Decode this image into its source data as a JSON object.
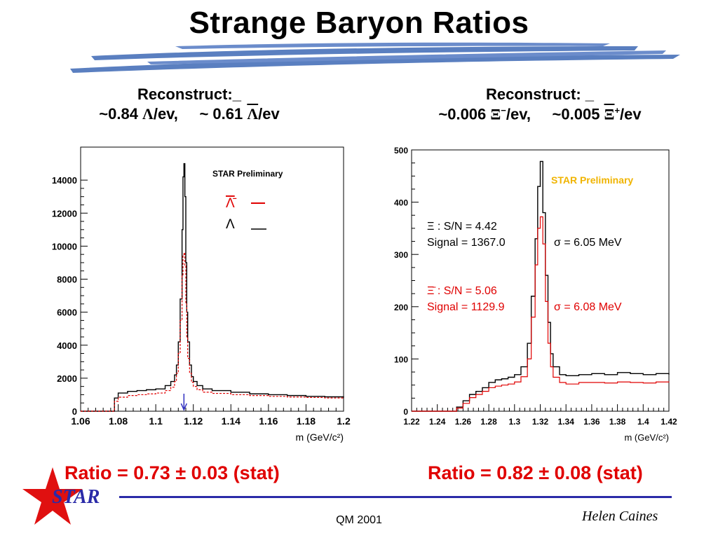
{
  "title": "Strange Baryon  Ratios",
  "colors": {
    "accent_red": "#e00000",
    "star_blue": "#2a2aa8",
    "brush_blue": "#5a7fc0"
  },
  "left_header": {
    "line1": "Reconstruct:_",
    "approx1": "~",
    "val1": "0.84 ",
    "sym1": "Λ",
    "unit1": "/ev,",
    "approx2": "~ ",
    "val2": "0.61 ",
    "sym2": "Λ",
    "unit2": "/ev"
  },
  "right_header": {
    "line1": "Reconstruct:    _",
    "approx1": "~",
    "val1": "0.006 ",
    "sym1": "Ξ",
    "sup1": "−",
    "unit1": "/ev,",
    "approx2": "~",
    "val2": "0.005 ",
    "sym2": "Ξ",
    "sup2": "+",
    "unit2": "/ev"
  },
  "chart_data": [
    {
      "type": "line",
      "xlabel": "m  (GeV/c²)",
      "xlim": [
        1.06,
        1.2
      ],
      "ylim": [
        0,
        16000
      ],
      "x_ticks": [
        "1.06",
        "1.08",
        "1.1",
        "1.12",
        "1.14",
        "1.16",
        "1.18",
        "1.2"
      ],
      "y_ticks": [
        "0",
        "2000",
        "4000",
        "6000",
        "8000",
        "10000",
        "12000",
        "14000"
      ],
      "annotation": "STAR Preliminary",
      "legend": [
        {
          "symbol": "Λ̄",
          "style": "red dashed",
          "color": "#e00000"
        },
        {
          "symbol": "Λ",
          "style": "black solid",
          "color": "#000000"
        }
      ],
      "arrow_x": 1.115,
      "series": [
        {
          "style": "black solid",
          "color": "#000000",
          "x": [
            1.06,
            1.069,
            1.077,
            1.078,
            1.08,
            1.085,
            1.09,
            1.095,
            1.1,
            1.105,
            1.108,
            1.11,
            1.111,
            1.112,
            1.113,
            1.114,
            1.1145,
            1.115,
            1.1155,
            1.116,
            1.1165,
            1.117,
            1.118,
            1.119,
            1.12,
            1.122,
            1.125,
            1.13,
            1.14,
            1.15,
            1.16,
            1.17,
            1.18,
            1.19,
            1.2
          ],
          "values": [
            0,
            0,
            0,
            800,
            1100,
            1200,
            1250,
            1300,
            1350,
            1550,
            1800,
            2200,
            2800,
            4200,
            6800,
            11000,
            14200,
            15000,
            13000,
            9000,
            6000,
            4200,
            2800,
            2100,
            1800,
            1550,
            1350,
            1250,
            1150,
            1050,
            1000,
            950,
            900,
            870,
            830
          ]
        },
        {
          "style": "red dashed",
          "color": "#e00000",
          "x": [
            1.06,
            1.069,
            1.077,
            1.078,
            1.08,
            1.085,
            1.09,
            1.095,
            1.1,
            1.105,
            1.108,
            1.11,
            1.111,
            1.112,
            1.113,
            1.114,
            1.1145,
            1.115,
            1.1155,
            1.116,
            1.1165,
            1.117,
            1.118,
            1.119,
            1.12,
            1.122,
            1.125,
            1.13,
            1.14,
            1.15,
            1.16,
            1.17,
            1.18,
            1.19,
            1.2
          ],
          "values": [
            0,
            0,
            0,
            600,
            850,
            950,
            1000,
            1050,
            1100,
            1250,
            1450,
            1800,
            2300,
            3500,
            5500,
            8200,
            9400,
            9600,
            8800,
            6500,
            4500,
            3200,
            2300,
            1750,
            1500,
            1300,
            1150,
            1080,
            1000,
            950,
            900,
            860,
            830,
            800,
            780
          ]
        }
      ]
    },
    {
      "type": "line",
      "xlabel": "m (GeV/c²)",
      "xlim": [
        1.22,
        1.42
      ],
      "ylim": [
        0,
        500
      ],
      "x_ticks": [
        "1.22",
        "1.24",
        "1.26",
        "1.28",
        "1.3",
        "1.32",
        "1.34",
        "1.36",
        "1.38",
        "1.4",
        "1.42"
      ],
      "y_ticks": [
        "0",
        "100",
        "200",
        "300",
        "400",
        "500"
      ],
      "annotation": "STAR Preliminary",
      "stats": [
        {
          "sym": "Ξ",
          "sn": " : S/N = 4.42",
          "signal": "Signal = 1367.0",
          "sigma": "σ = 6.05 MeV",
          "color": "#000000"
        },
        {
          "sym": "Ξ̄",
          "sn": " : S/N = 5.06",
          "signal": "Signal = 1129.9",
          "sigma": "σ = 6.08 MeV",
          "color": "#e00000"
        }
      ],
      "series": [
        {
          "style": "black solid",
          "color": "#000000",
          "x": [
            1.22,
            1.25,
            1.255,
            1.26,
            1.265,
            1.27,
            1.275,
            1.28,
            1.285,
            1.29,
            1.295,
            1.3,
            1.305,
            1.31,
            1.313,
            1.316,
            1.318,
            1.32,
            1.322,
            1.324,
            1.326,
            1.328,
            1.33,
            1.335,
            1.34,
            1.35,
            1.36,
            1.37,
            1.38,
            1.39,
            1.4,
            1.41,
            1.42
          ],
          "values": [
            0,
            0,
            8,
            20,
            32,
            38,
            45,
            55,
            60,
            62,
            65,
            70,
            85,
            130,
            220,
            330,
            430,
            478,
            380,
            260,
            170,
            110,
            85,
            70,
            68,
            70,
            72,
            70,
            74,
            72,
            70,
            72,
            70
          ]
        },
        {
          "style": "red solid",
          "color": "#e00000",
          "x": [
            1.22,
            1.25,
            1.255,
            1.26,
            1.265,
            1.27,
            1.275,
            1.28,
            1.285,
            1.29,
            1.295,
            1.3,
            1.305,
            1.31,
            1.313,
            1.316,
            1.318,
            1.32,
            1.322,
            1.324,
            1.326,
            1.328,
            1.33,
            1.335,
            1.34,
            1.35,
            1.36,
            1.37,
            1.38,
            1.39,
            1.4,
            1.41,
            1.42
          ],
          "values": [
            0,
            0,
            6,
            15,
            26,
            32,
            38,
            45,
            48,
            50,
            52,
            56,
            66,
            100,
            180,
            280,
            350,
            372,
            320,
            210,
            130,
            85,
            65,
            55,
            52,
            55,
            55,
            54,
            56,
            55,
            54,
            56,
            55
          ]
        }
      ]
    }
  ],
  "ratio_left": "Ratio = 0.73 ± 0.03 (stat)",
  "ratio_right": "Ratio = 0.82 ± 0.08 (stat)",
  "star_logo_text": "STAR",
  "footer_conference": "QM 2001",
  "footer_author": "Helen Caines"
}
